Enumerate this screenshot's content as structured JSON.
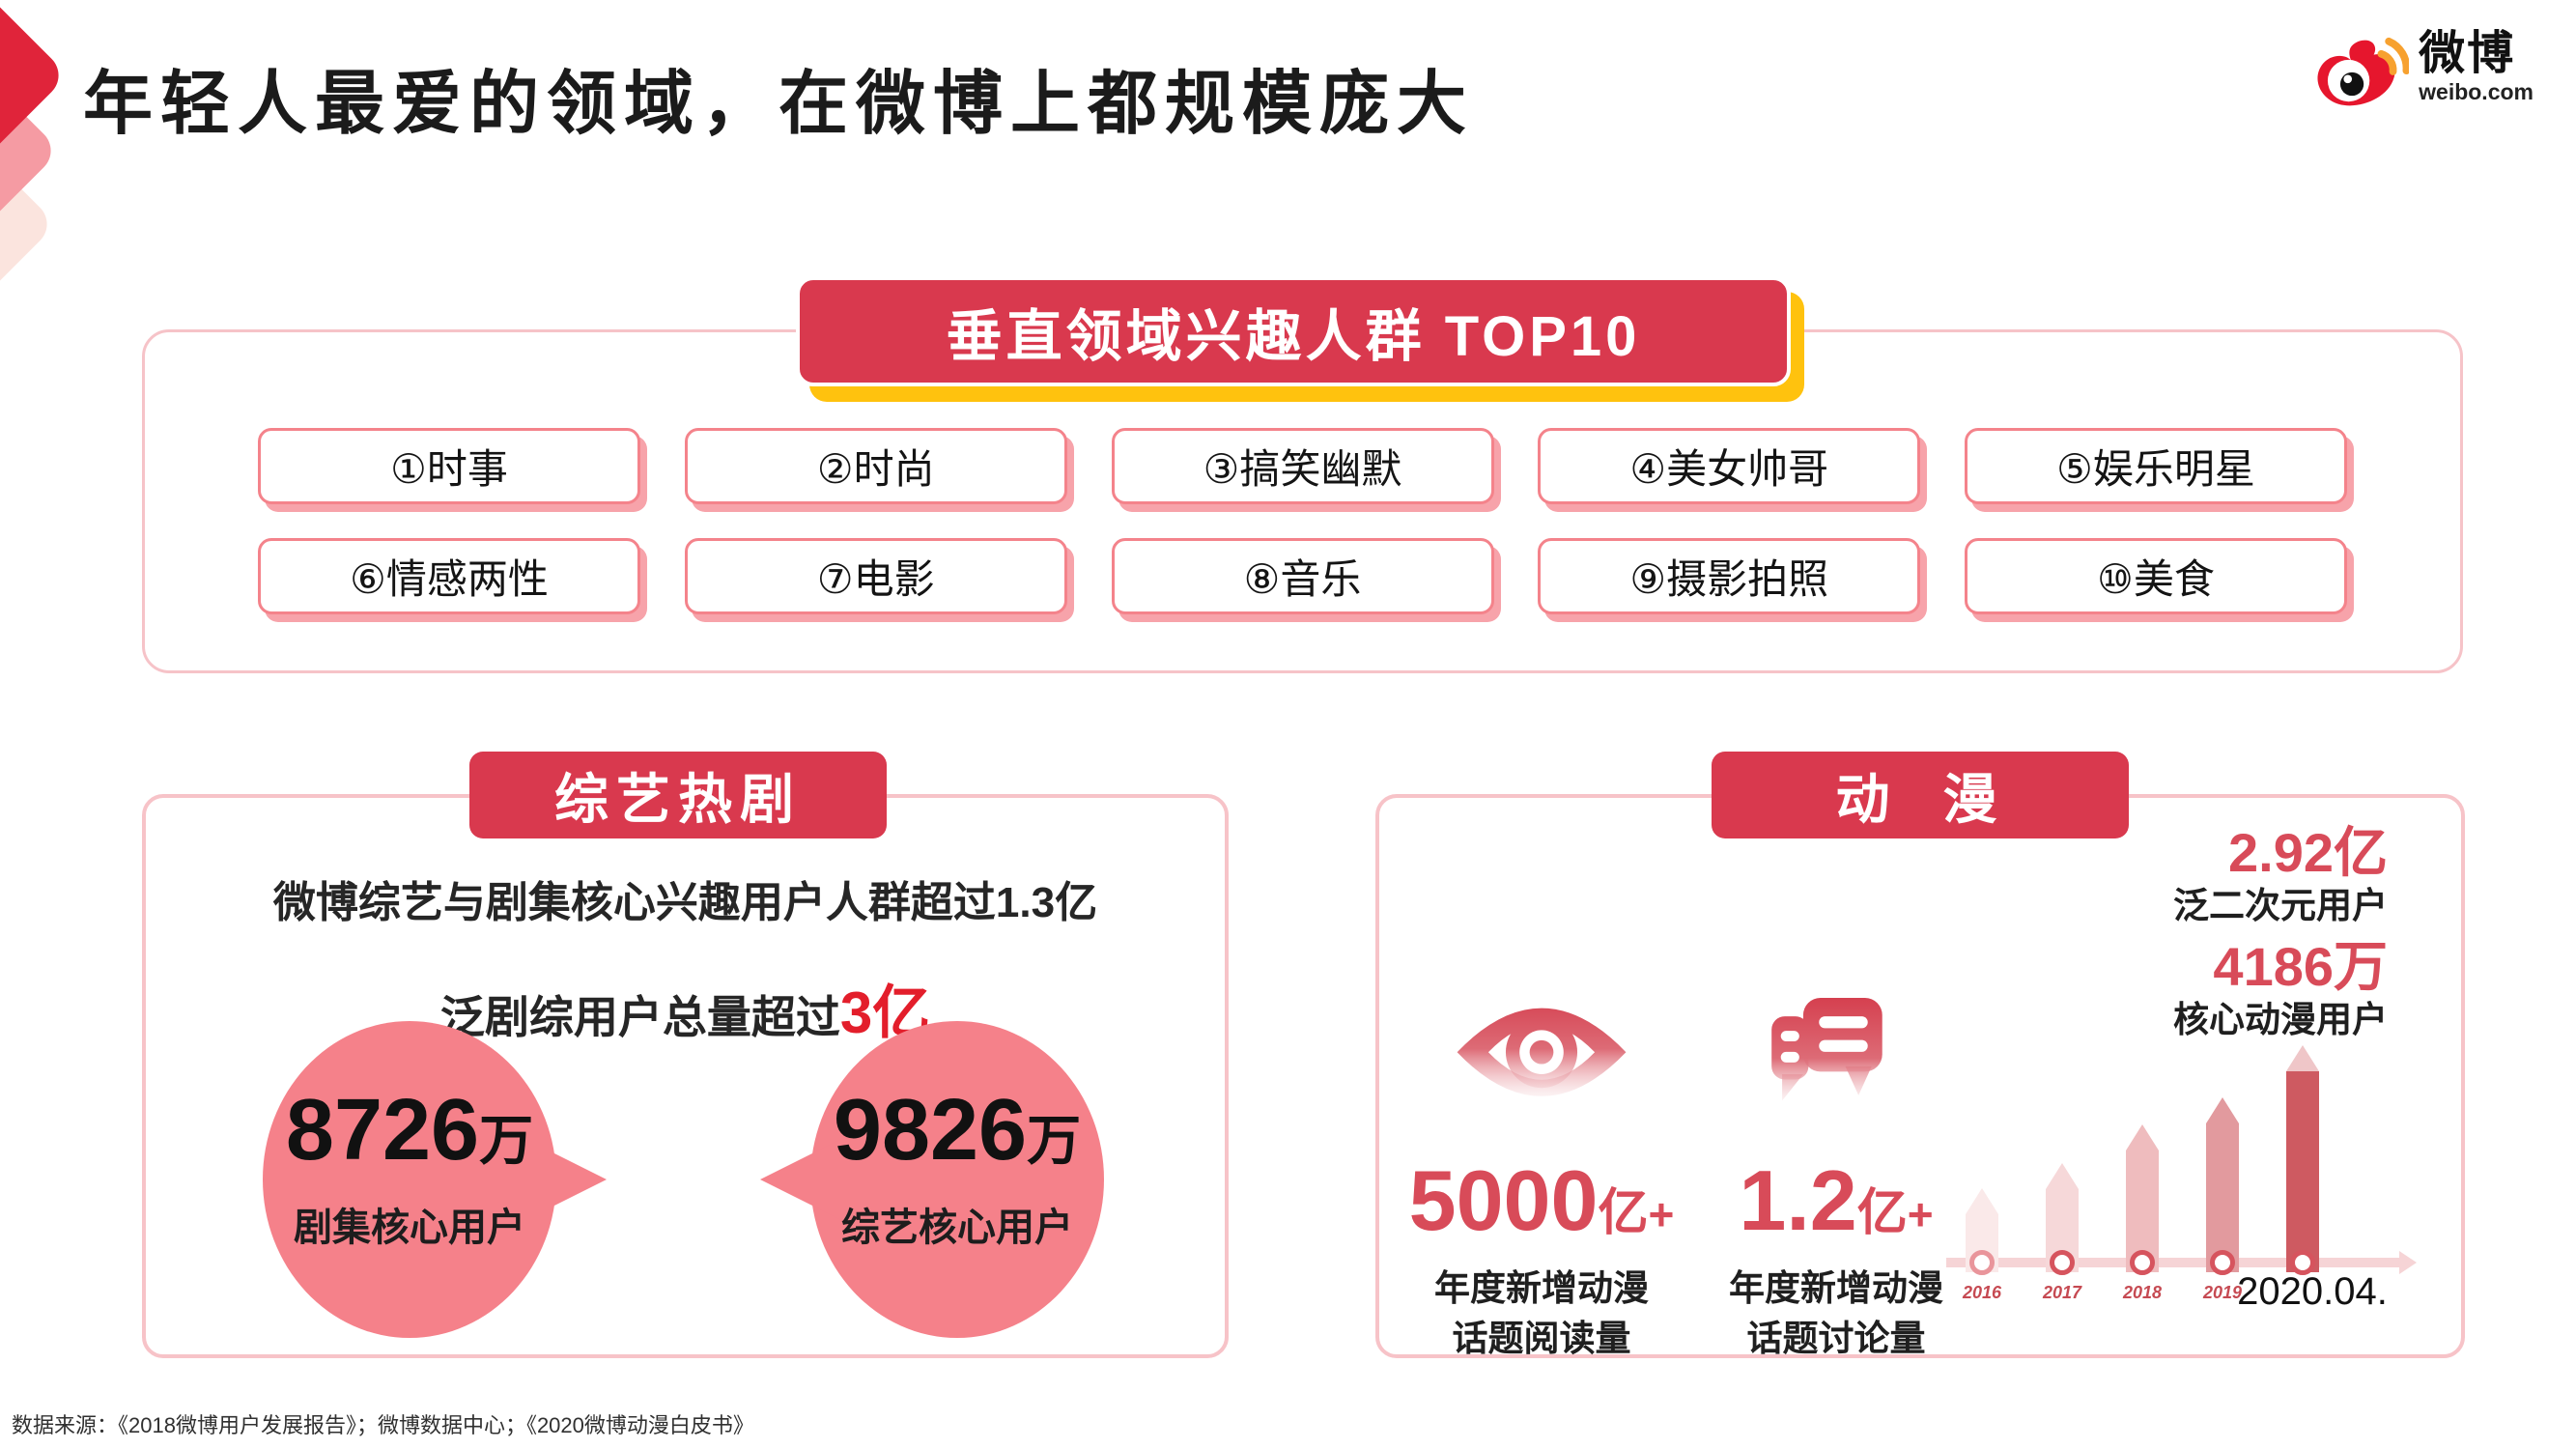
{
  "slide": {
    "title": "年轻人最爱的领域，在微博上都规模庞大",
    "source_note": "数据来源：《2018微博用户发展报告》；微博数据中心；《2020微博动漫白皮书》"
  },
  "logo": {
    "brand": "微博",
    "domain": "weibo.com"
  },
  "banner": {
    "label": "垂直领域兴趣人群 TOP10"
  },
  "top10": {
    "items": [
      "①时事",
      "②时尚",
      "③搞笑幽默",
      "④美女帅哥",
      "⑤娱乐明星",
      "⑥情感两性",
      "⑦电影",
      "⑧音乐",
      "⑨摄影拍照",
      "⑩美食"
    ]
  },
  "variety_card": {
    "header": "综艺热剧",
    "line1": "微博综艺与剧集核心兴趣用户人群超过1.3亿",
    "line2_prefix": "泛剧综用户总量超过",
    "line2_highlight": "3亿",
    "bubbles": [
      {
        "value": "8726",
        "unit": "万",
        "label": "剧集核心用户"
      },
      {
        "value": "9826",
        "unit": "万",
        "label": "综艺核心用户"
      }
    ]
  },
  "anime_card": {
    "header": "动  漫",
    "side_stats": [
      {
        "value": "2.92亿",
        "label": "泛二次元用户"
      },
      {
        "value": "4186万",
        "label": "核心动漫用户"
      }
    ],
    "metrics": [
      {
        "icon": "eye-icon",
        "value": "5000",
        "unit": "亿",
        "plus": "+",
        "label1": "年度新增动漫",
        "label2": "话题阅读量"
      },
      {
        "icon": "discussion-icon",
        "value": "1.2",
        "unit": "亿",
        "plus": "+",
        "label1": "年度新增动漫",
        "label2": "话题讨论量"
      }
    ]
  },
  "chart_data": {
    "type": "bar",
    "title": "",
    "xlabel": "",
    "ylabel": "",
    "categories": [
      "2016",
      "2017",
      "2018",
      "2019",
      "2020.04."
    ],
    "values": [
      37,
      48,
      65,
      77,
      100
    ],
    "value_unit": "relative bar height, % of 2020.04. bar (no numeric axis shown in image)",
    "grid": false,
    "legend": null,
    "baseline_color": "#F6D4D6",
    "bars": [
      {
        "year": "2016",
        "height_pct": 37,
        "color": "#FAE9E9",
        "dot_color": "#E9959B",
        "label_style": "small-red"
      },
      {
        "year": "2017",
        "height_pct": 48,
        "color": "#F6D8D9",
        "dot_color": "#D6545E",
        "label_style": "small-red"
      },
      {
        "year": "2018",
        "height_pct": 65,
        "color": "#EFBCBE",
        "dot_color": "#D6545E",
        "label_style": "small-red"
      },
      {
        "year": "2019",
        "height_pct": 77,
        "color": "#E29A9E",
        "dot_color": "#D6545E",
        "label_style": "small-red"
      },
      {
        "year": "2020.04.",
        "height_pct": 100,
        "color": "#CE5A61",
        "tip_color": "#EFC6C8",
        "dot_color": "#D6545E",
        "label_style": "big-black"
      }
    ]
  },
  "colors": {
    "primary_red": "#D9394E",
    "accent_yellow": "#FFC20E",
    "chip_border_pink": "#F4838B",
    "bubble_pink": "#F5818A",
    "card_border_pink": "#F7C3C8",
    "stat_red": "#D84B59",
    "highlight_red": "#E31E2B"
  }
}
